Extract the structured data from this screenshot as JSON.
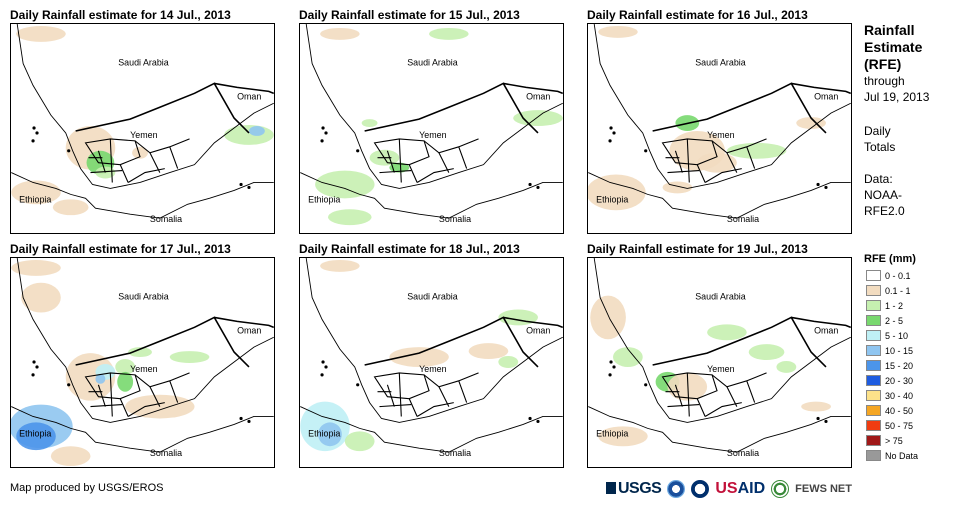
{
  "panels": [
    {
      "title": "Daily Rainfall estimate for 14 Jul., 2013"
    },
    {
      "title": "Daily Rainfall estimate for 15 Jul., 2013"
    },
    {
      "title": "Daily Rainfall estimate for 16 Jul., 2013"
    },
    {
      "title": "Daily Rainfall estimate for 17 Jul., 2013"
    },
    {
      "title": "Daily Rainfall estimate for 18 Jul., 2013"
    },
    {
      "title": "Daily Rainfall estimate for 19 Jul., 2013"
    }
  ],
  "map_labels": {
    "saudi": "Saudi Arabia",
    "oman": "Oman",
    "yemen": "Yemen",
    "ethiopia": "Ethiopia",
    "somalia": "Somalia"
  },
  "side": {
    "title_lines": [
      "Rainfall",
      "Estimate",
      "(RFE)"
    ],
    "through": "through",
    "date": "Jul 19, 2013",
    "daily": "Daily",
    "totals": "Totals",
    "data_label": "Data:",
    "source1": "NOAA-",
    "source2": "RFE2.0"
  },
  "legend": {
    "title": "RFE (mm)",
    "items": [
      {
        "label": "0 - 0.1",
        "color": "#ffffff"
      },
      {
        "label": "0.1 - 1",
        "color": "#f2dcc0"
      },
      {
        "label": "1 - 2",
        "color": "#c6f0b0"
      },
      {
        "label": "2 - 5",
        "color": "#78d86e"
      },
      {
        "label": "5 - 10",
        "color": "#bff0f5"
      },
      {
        "label": "10 - 15",
        "color": "#8fc5f0"
      },
      {
        "label": "15 - 20",
        "color": "#4c95ea"
      },
      {
        "label": "20 - 30",
        "color": "#1e5ce0"
      },
      {
        "label": "30 - 40",
        "color": "#fde28a"
      },
      {
        "label": "40 - 50",
        "color": "#f5a623"
      },
      {
        "label": "50 - 75",
        "color": "#f03c10"
      },
      {
        "label": "> 75",
        "color": "#a01818"
      },
      {
        "label": "No Data",
        "color": "#999999"
      }
    ]
  },
  "credit": "Map produced by USGS/EROS",
  "logos": {
    "usgs": "USGS",
    "usaid_us": "US",
    "usaid_aid": "AID",
    "fews": "FEWS NET"
  }
}
